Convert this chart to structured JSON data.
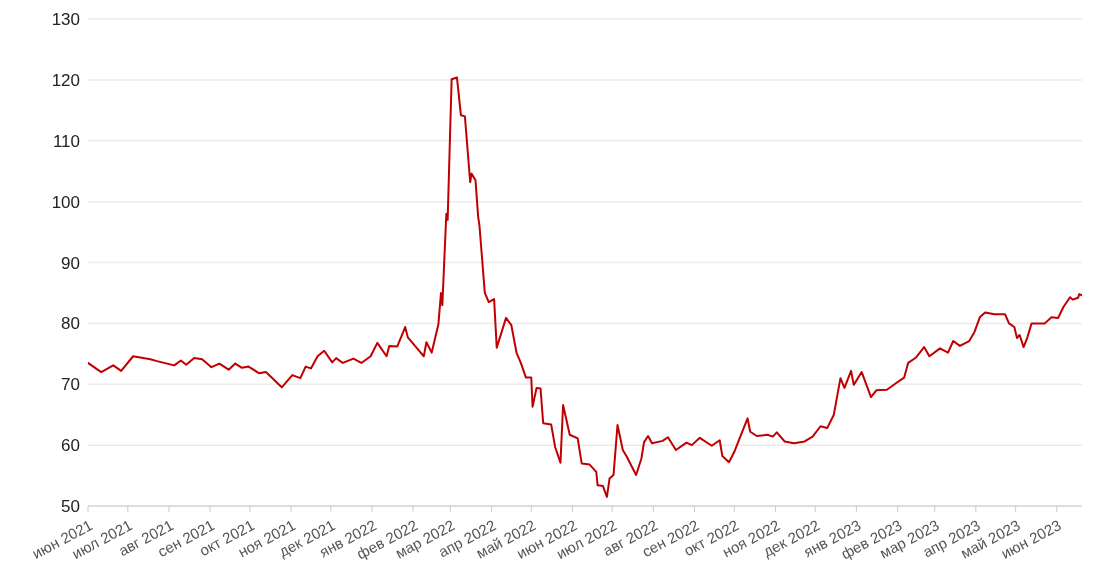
{
  "chart_data": {
    "type": "line",
    "grid": "y",
    "marker": "none",
    "line_style": "solid",
    "legend": false,
    "xlim": [
      "2021-06-01",
      "2023-06-20"
    ],
    "ylim": [
      50,
      130
    ],
    "yticks": [
      50,
      60,
      70,
      80,
      90,
      100,
      110,
      120,
      130
    ],
    "xticks": [
      {
        "value": "2021-06-01",
        "label": "июн 2021"
      },
      {
        "value": "2021-07-01",
        "label": "июл 2021"
      },
      {
        "value": "2021-08-01",
        "label": "авг 2021"
      },
      {
        "value": "2021-09-01",
        "label": "сен 2021"
      },
      {
        "value": "2021-10-01",
        "label": "окт 2021"
      },
      {
        "value": "2021-11-01",
        "label": "ноя 2021"
      },
      {
        "value": "2021-12-01",
        "label": "дек 2021"
      },
      {
        "value": "2022-01-01",
        "label": "янв 2022"
      },
      {
        "value": "2022-02-01",
        "label": "фев 2022"
      },
      {
        "value": "2022-03-01",
        "label": "мар 2022"
      },
      {
        "value": "2022-04-01",
        "label": "апр 2022"
      },
      {
        "value": "2022-05-01",
        "label": "май 2022"
      },
      {
        "value": "2022-06-01",
        "label": "июн 2022"
      },
      {
        "value": "2022-07-01",
        "label": "июл 2022"
      },
      {
        "value": "2022-08-01",
        "label": "авг 2022"
      },
      {
        "value": "2022-09-01",
        "label": "сен 2022"
      },
      {
        "value": "2022-10-01",
        "label": "окт 2022"
      },
      {
        "value": "2022-11-01",
        "label": "ноя 2022"
      },
      {
        "value": "2022-12-01",
        "label": "дек 2022"
      },
      {
        "value": "2023-01-01",
        "label": "янв 2023"
      },
      {
        "value": "2023-02-01",
        "label": "фев 2023"
      },
      {
        "value": "2023-03-01",
        "label": "мар 2023"
      },
      {
        "value": "2023-04-01",
        "label": "апр 2023"
      },
      {
        "value": "2023-05-01",
        "label": "май 2023"
      },
      {
        "value": "2023-06-01",
        "label": "июн 2023"
      }
    ],
    "x": [
      "2021-06-01",
      "2021-06-11",
      "2021-06-20",
      "2021-06-26",
      "2021-07-05",
      "2021-07-18",
      "2021-07-23",
      "2021-08-05",
      "2021-08-10",
      "2021-08-14",
      "2021-08-20",
      "2021-08-26",
      "2021-09-02",
      "2021-09-08",
      "2021-09-15",
      "2021-09-20",
      "2021-09-25",
      "2021-09-30",
      "2021-10-08",
      "2021-10-13",
      "2021-10-18",
      "2021-10-25",
      "2021-11-02",
      "2021-11-08",
      "2021-11-12",
      "2021-11-16",
      "2021-11-21",
      "2021-11-26",
      "2021-12-02",
      "2021-12-05",
      "2021-12-10",
      "2021-12-18",
      "2021-12-24",
      "2021-12-31",
      "2022-01-05",
      "2022-01-12",
      "2022-01-14",
      "2022-01-20",
      "2022-01-26",
      "2022-01-28",
      "2022-02-04",
      "2022-02-09",
      "2022-02-11",
      "2022-02-15",
      "2022-02-20",
      "2022-02-22",
      "2022-02-23",
      "2022-02-26",
      "2022-02-27",
      "2022-03-02",
      "2022-03-06",
      "2022-03-09",
      "2022-03-12",
      "2022-03-16",
      "2022-03-17",
      "2022-03-20",
      "2022-03-22",
      "2022-03-23",
      "2022-03-27",
      "2022-03-30",
      "2022-04-03",
      "2022-04-05",
      "2022-04-10",
      "2022-04-12",
      "2022-04-16",
      "2022-04-20",
      "2022-04-23",
      "2022-04-27",
      "2022-05-01",
      "2022-05-02",
      "2022-05-05",
      "2022-05-08",
      "2022-05-10",
      "2022-05-16",
      "2022-05-19",
      "2022-05-23",
      "2022-05-25",
      "2022-05-30",
      "2022-06-05",
      "2022-06-08",
      "2022-06-14",
      "2022-06-19",
      "2022-06-20",
      "2022-06-24",
      "2022-06-27",
      "2022-06-29",
      "2022-07-02",
      "2022-07-05",
      "2022-07-09",
      "2022-07-12",
      "2022-07-19",
      "2022-07-23",
      "2022-07-25",
      "2022-07-28",
      "2022-07-31",
      "2022-08-08",
      "2022-08-12",
      "2022-08-18",
      "2022-08-26",
      "2022-08-30",
      "2022-09-05",
      "2022-09-14",
      "2022-09-20",
      "2022-09-22",
      "2022-09-27",
      "2022-10-01",
      "2022-10-05",
      "2022-10-11",
      "2022-10-13",
      "2022-10-18",
      "2022-10-26",
      "2022-10-30",
      "2022-11-02",
      "2022-11-08",
      "2022-11-15",
      "2022-11-23",
      "2022-11-29",
      "2022-12-05",
      "2022-12-10",
      "2022-12-15",
      "2022-12-20",
      "2022-12-23",
      "2022-12-28",
      "2022-12-30",
      "2023-01-05",
      "2023-01-12",
      "2023-01-16",
      "2023-01-24",
      "2023-01-31",
      "2023-02-06",
      "2023-02-09",
      "2023-02-15",
      "2023-02-21",
      "2023-02-25",
      "2023-03-05",
      "2023-03-11",
      "2023-03-15",
      "2023-03-20",
      "2023-03-27",
      "2023-03-31",
      "2023-04-04",
      "2023-04-08",
      "2023-04-15",
      "2023-04-23",
      "2023-04-26",
      "2023-04-30",
      "2023-05-02",
      "2023-05-04",
      "2023-05-07",
      "2023-05-10",
      "2023-05-13",
      "2023-05-23",
      "2023-05-28",
      "2023-06-02",
      "2023-06-06",
      "2023-06-11",
      "2023-06-13",
      "2023-06-17",
      "2023-06-18",
      "2023-06-20"
    ],
    "series": [
      {
        "color": "#c00000",
        "values": [
          73.5,
          72.0,
          73.1,
          72.2,
          74.6,
          74.1,
          73.8,
          73.1,
          73.9,
          73.2,
          74.3,
          74.1,
          72.8,
          73.4,
          72.4,
          73.4,
          72.7,
          72.9,
          71.8,
          72.0,
          71.0,
          69.5,
          71.5,
          71.0,
          72.9,
          72.6,
          74.6,
          75.5,
          73.6,
          74.3,
          73.5,
          74.2,
          73.5,
          74.6,
          76.8,
          74.6,
          76.3,
          76.2,
          79.4,
          77.7,
          75.9,
          74.6,
          76.9,
          75.2,
          79.8,
          85.0,
          83.0,
          98,
          97,
          120.1,
          120.4,
          114.2,
          114.0,
          103.2,
          104.6,
          103.5,
          97.5,
          96,
          85,
          83.5,
          84,
          76.0,
          79.5,
          80.9,
          79.7,
          75.1,
          73.6,
          71.1,
          71.1,
          66.3,
          69.4,
          69.3,
          63.6,
          63.4,
          59.7,
          57.1,
          66.6,
          61.7,
          61.1,
          57.0,
          56.8,
          55.6,
          53.4,
          53.3,
          51.5,
          54.5,
          55.1,
          63.3,
          59.2,
          58.1,
          55.1,
          57.8,
          60.5,
          61.5,
          60.3,
          60.7,
          61.3,
          59.2,
          60.4,
          60.0,
          61.2,
          59.9,
          60.8,
          58.2,
          57.2,
          58.9,
          61.1,
          64.4,
          62.2,
          61.5,
          61.7,
          61.4,
          62.1,
          60.6,
          60.3,
          60.6,
          61.4,
          63.1,
          62.8,
          65.0,
          71.0,
          69.4,
          72.2,
          69.9,
          72.0,
          67.9,
          69.0,
          69.1,
          70.2,
          71.1,
          73.5,
          74.4,
          76.1,
          74.6,
          75.9,
          75.2,
          77.1,
          76.3,
          77.1,
          78.6,
          81.0,
          81.8,
          81.5,
          81.5,
          80.0,
          79.4,
          77.6,
          78.1,
          76.1,
          77.8,
          80.0,
          80.0,
          81.0,
          80.9,
          82.7,
          84.3,
          83.9,
          84.2,
          84.8,
          84.6
        ]
      }
    ]
  }
}
